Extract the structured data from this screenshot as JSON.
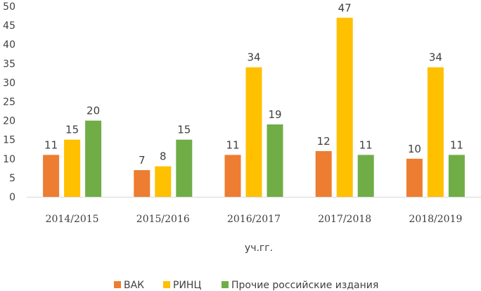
{
  "chart_data": {
    "type": "bar",
    "categories": [
      "2014/2015",
      "2015/2016",
      "2016/2017",
      "2017/2018",
      "2018/2019"
    ],
    "series": [
      {
        "name": "ВАК",
        "color": "#ED7D31",
        "values": [
          11,
          7,
          11,
          12,
          10
        ]
      },
      {
        "name": "РИНЦ",
        "color": "#FFC000",
        "values": [
          15,
          8,
          34,
          47,
          34
        ]
      },
      {
        "name": "Прочие российские издания",
        "color": "#70AD47",
        "values": [
          20,
          15,
          19,
          11,
          11
        ]
      }
    ],
    "xlabel": "уч.гг.",
    "ylim": [
      0,
      50
    ],
    "yticks": [
      0,
      5,
      10,
      15,
      20,
      25,
      30,
      35,
      40,
      45,
      50
    ],
    "grid": false,
    "legend": "bottom",
    "data_labels": true
  }
}
